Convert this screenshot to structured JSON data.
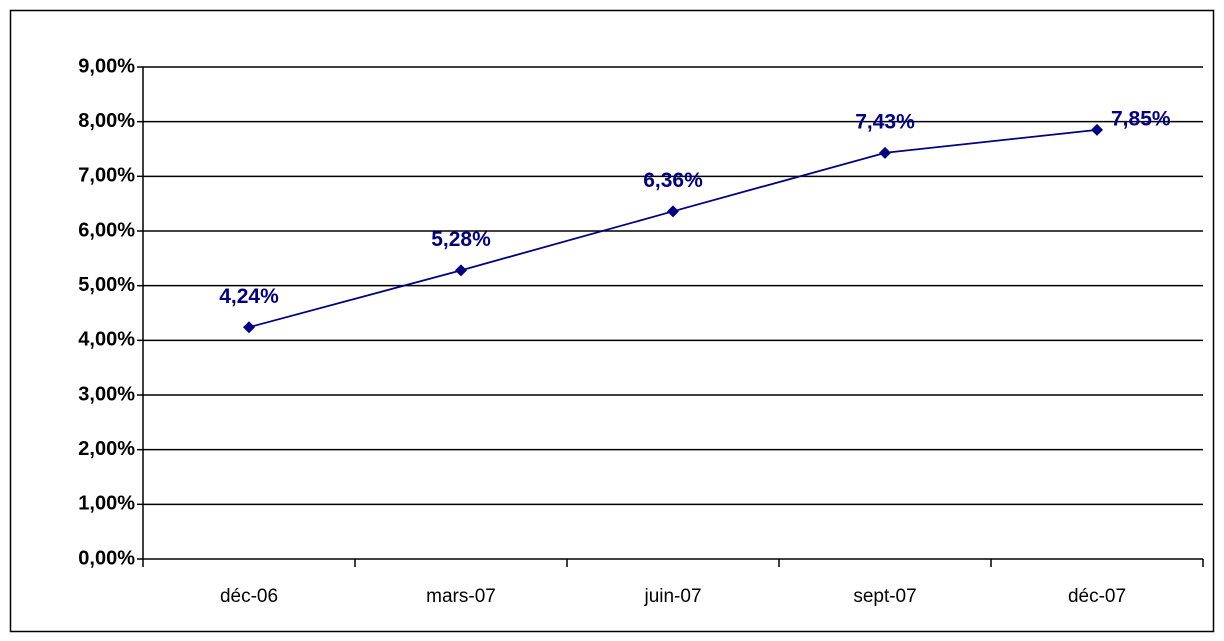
{
  "chart_data": {
    "type": "line",
    "categories": [
      "déc-06",
      "mars-07",
      "juin-07",
      "sept-07",
      "déc-07"
    ],
    "values": [
      4.24,
      5.28,
      6.36,
      7.43,
      7.85
    ],
    "value_labels": [
      "4,24%",
      "5,28%",
      "6,36%",
      "7,43%",
      "7,85%"
    ],
    "color": "#000080",
    "ylim": [
      0,
      9
    ],
    "yticks": [
      {
        "value": 0,
        "label": "0,00%"
      },
      {
        "value": 1,
        "label": "1,00%"
      },
      {
        "value": 2,
        "label": "2,00%"
      },
      {
        "value": 3,
        "label": "3,00%"
      },
      {
        "value": 4,
        "label": "4,00%"
      },
      {
        "value": 5,
        "label": "5,00%"
      },
      {
        "value": 6,
        "label": "6,00%"
      },
      {
        "value": 7,
        "label": "7,00%"
      },
      {
        "value": 8,
        "label": "8,00%"
      },
      {
        "value": 9,
        "label": "9,00%"
      }
    ],
    "grid": true
  }
}
